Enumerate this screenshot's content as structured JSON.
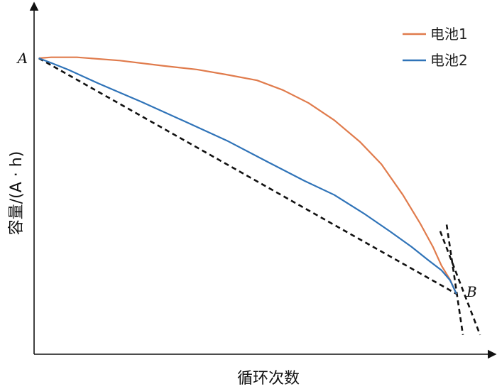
{
  "chart_data": {
    "type": "line",
    "title": "",
    "xlabel": "循环次数",
    "ylabel": "容量/(A · h)",
    "xlim": [
      0,
      1
    ],
    "ylim": [
      0,
      1
    ],
    "grid": false,
    "legend_position": "top-right",
    "series": [
      {
        "name": "电池1",
        "color": "#e07b4c",
        "x": [
          0.011,
          0.04,
          0.1,
          0.2,
          0.3,
          0.38,
          0.45,
          0.52,
          0.58,
          0.64,
          0.7,
          0.76,
          0.81,
          0.86,
          0.9,
          0.93,
          0.95,
          0.97,
          0.985
        ],
        "y": [
          1.0,
          1.004,
          1.004,
          0.99,
          0.968,
          0.952,
          0.93,
          0.906,
          0.865,
          0.81,
          0.737,
          0.645,
          0.55,
          0.42,
          0.3,
          0.2,
          0.12,
          0.06,
          0.0
        ]
      },
      {
        "name": "电池2",
        "color": "#2f73b8",
        "x": [
          0.011,
          0.04,
          0.08,
          0.15,
          0.25,
          0.35,
          0.45,
          0.55,
          0.63,
          0.7,
          0.77,
          0.83,
          0.88,
          0.92,
          0.95,
          0.97,
          0.985
        ],
        "y": [
          1.0,
          0.98,
          0.951,
          0.893,
          0.815,
          0.733,
          0.65,
          0.555,
          0.48,
          0.42,
          0.34,
          0.265,
          0.2,
          0.142,
          0.1,
          0.058,
          0.0
        ]
      }
    ],
    "reference_lines": [
      {
        "x1": 0.011,
        "y1": 1.0,
        "x2": 0.985,
        "y2": 0.0
      },
      {
        "x1": 0.947,
        "y1": 0.266,
        "x2": 1.04,
        "y2": -0.174
      },
      {
        "x1": 0.962,
        "y1": 0.294,
        "x2": 1.0,
        "y2": -0.174
      }
    ],
    "points": [
      {
        "label": "A",
        "x": 0.011,
        "y": 1.0
      },
      {
        "label": "B",
        "x": 0.985,
        "y": 0.0
      }
    ]
  }
}
